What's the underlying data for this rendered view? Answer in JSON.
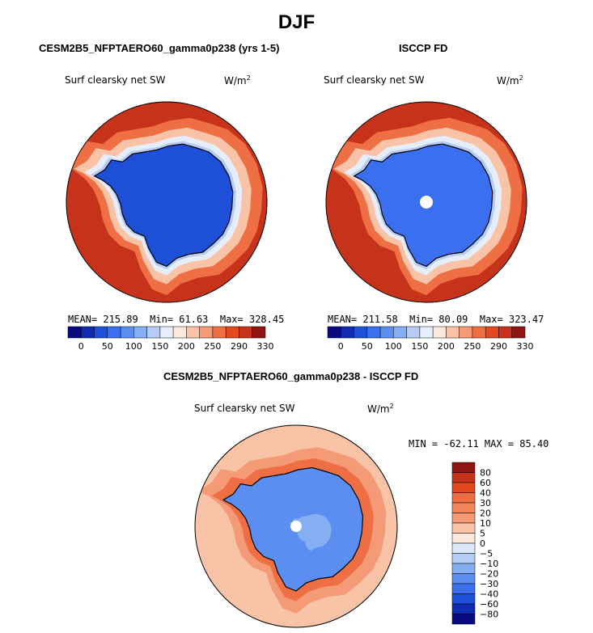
{
  "figure": {
    "title": "DJF",
    "left_panel_title": "CESM2B5_NFPTAERO60_gamma0p238 (yrs 1-5)",
    "right_panel_title": "ISCCP FD",
    "diff_panel_title": "CESM2B5_NFPTAERO60_gamma0p238 - ISCCP FD",
    "variable_label": "Surf clearsky net SW",
    "units_label": "W/m",
    "units_exponent": "2"
  },
  "chart_data": [
    {
      "type": "heatmap",
      "projection": "south-polar-stereographic",
      "title": "CESM2B5_NFPTAERO60_gamma0p238 (yrs 1-5)",
      "subtitle": "Surf clearsky net SW",
      "units": "W/m2",
      "stats_text": {
        "mean": "MEAN= 215.89",
        "min": "Min=  61.63",
        "max": "Max= 328.45"
      },
      "stats": {
        "mean": 215.89,
        "min": 61.63,
        "max": 328.45
      },
      "colorbar_levels": [
        0,
        25,
        50,
        75,
        100,
        125,
        150,
        175,
        200,
        225,
        250,
        270,
        290,
        310,
        330
      ],
      "colorbar_tick_labels": [
        "0",
        "50",
        "100",
        "150",
        "200",
        "250",
        "290",
        "330"
      ],
      "colors": [
        "#0a0a80",
        "#0f2bb0",
        "#1e4fd8",
        "#3a6ff0",
        "#5b8ef0",
        "#86aef2",
        "#b5cdf5",
        "#e6eefc",
        "#fde8dc",
        "#f9c3a8",
        "#f49a76",
        "#ef6f45",
        "#e4481f",
        "#c6321a",
        "#8f1512"
      ],
      "region_values": {
        "ice_sheet": 70,
        "ice_shelf_margin": 150,
        "sea_ice_belt": 240,
        "open_ocean": 322
      }
    },
    {
      "type": "heatmap",
      "projection": "south-polar-stereographic",
      "title": "ISCCP FD",
      "subtitle": "Surf clearsky net SW",
      "units": "W/m2",
      "stats_text": {
        "mean": "MEAN= 211.58",
        "min": "Min=  80.09",
        "max": "Max= 323.47"
      },
      "stats": {
        "mean": 211.58,
        "min": 80.09,
        "max": 323.47
      },
      "colorbar_levels": [
        0,
        25,
        50,
        75,
        100,
        125,
        150,
        175,
        200,
        225,
        250,
        270,
        290,
        310,
        330
      ],
      "colorbar_tick_labels": [
        "0",
        "50",
        "100",
        "150",
        "200",
        "250",
        "290",
        "330"
      ],
      "colors": [
        "#0a0a80",
        "#0f2bb0",
        "#1e4fd8",
        "#3a6ff0",
        "#5b8ef0",
        "#86aef2",
        "#b5cdf5",
        "#e6eefc",
        "#fde8dc",
        "#f9c3a8",
        "#f49a76",
        "#ef6f45",
        "#e4481f",
        "#c6321a",
        "#8f1512"
      ],
      "region_values": {
        "ice_sheet": 90,
        "ice_shelf_margin": 160,
        "sea_ice_belt": 240,
        "open_ocean": 318
      }
    },
    {
      "type": "heatmap",
      "projection": "south-polar-stereographic",
      "title": "CESM2B5_NFPTAERO60_gamma0p238 - ISCCP FD",
      "subtitle": "Surf clearsky net SW",
      "units": "W/m2",
      "stats_text": "MIN = -62.11  MAX =  85.40",
      "stats": {
        "min": -62.11,
        "max": 85.4
      },
      "colorbar_levels": [
        -80,
        -60,
        -40,
        -30,
        -20,
        -10,
        -5,
        0,
        5,
        10,
        20,
        30,
        40,
        60,
        80
      ],
      "colorbar_tick_labels": [
        "80",
        "60",
        "40",
        "30",
        "20",
        "10",
        "5",
        "0",
        "−5",
        "−10",
        "−20",
        "−30",
        "−40",
        "−60",
        "−80"
      ],
      "colors": [
        "#8f1512",
        "#c6321a",
        "#e4481f",
        "#ef6f45",
        "#f2855c",
        "#f49a76",
        "#f9c3a8",
        "#fde8dc",
        "#dde8fa",
        "#b5cdf5",
        "#86aef2",
        "#5b8ef0",
        "#3a6ff0",
        "#1e4fd8",
        "#0f2bb0",
        "#0a0a80"
      ],
      "region_values": {
        "ice_sheet_west": -30,
        "ice_sheet_east": -25,
        "coastal_ring": 35,
        "open_ocean": 6
      }
    }
  ]
}
